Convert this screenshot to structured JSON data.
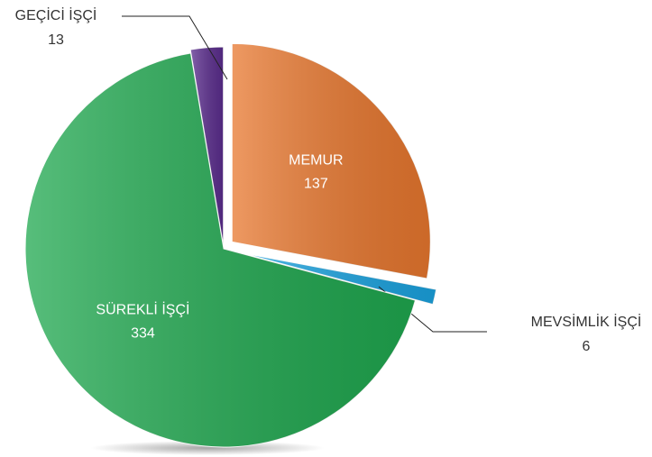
{
  "chart_data": {
    "type": "pie",
    "categories": [
      "MEMUR",
      "MEVSİMLİK İŞÇİ",
      "SÜREKLİ İŞÇİ",
      "GEÇİCİ İŞÇİ"
    ],
    "values": [
      137,
      6,
      334,
      13
    ],
    "colors": [
      "#e8772e",
      "#1aa3e0",
      "#1fa84f",
      "#5b2d8e"
    ]
  }
}
